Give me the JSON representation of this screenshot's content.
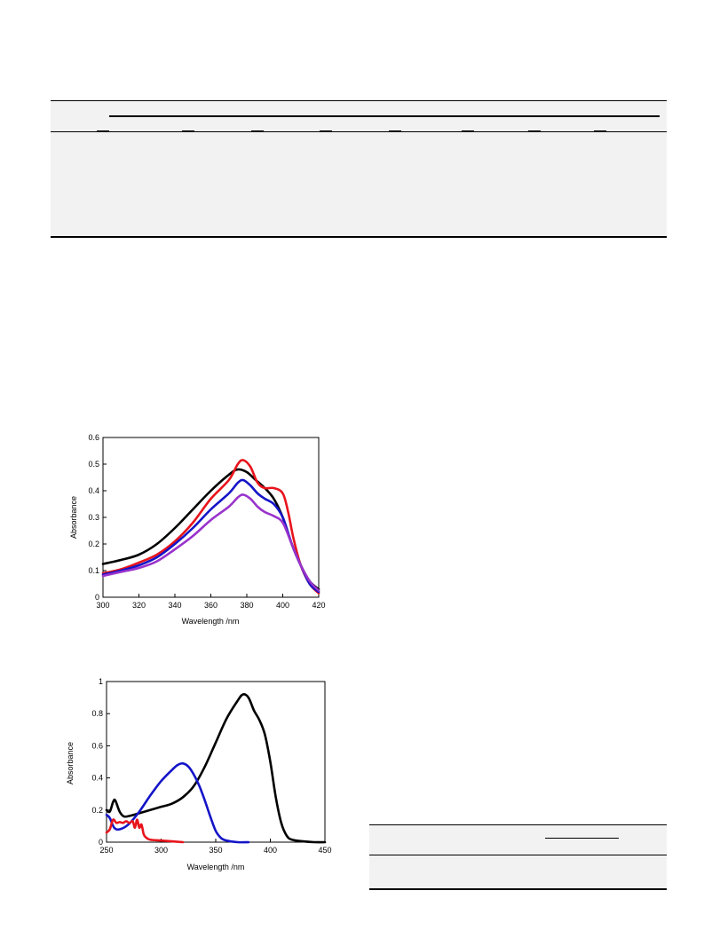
{
  "chart_data": [
    {
      "type": "line",
      "title": "",
      "xlabel": "Wavelength /nm",
      "ylabel": "Absorbance",
      "xlim": [
        300,
        420
      ],
      "ylim": [
        0,
        0.6
      ],
      "xticks": [
        "300",
        "320",
        "340",
        "360",
        "380",
        "400",
        "420"
      ],
      "yticks": [
        "0",
        "0.1",
        "0.2",
        "0.3",
        "0.4",
        "0.5",
        "0.6"
      ],
      "grid": false,
      "legend": "none",
      "series": [
        {
          "color": "#000000",
          "x": [
            300,
            310,
            320,
            330,
            340,
            350,
            360,
            370,
            375,
            380,
            385,
            390,
            395,
            400,
            405,
            410,
            415,
            420
          ],
          "values": [
            0.125,
            0.14,
            0.16,
            0.2,
            0.26,
            0.33,
            0.4,
            0.46,
            0.48,
            0.47,
            0.44,
            0.41,
            0.37,
            0.3,
            0.2,
            0.12,
            0.06,
            0.03
          ]
        },
        {
          "color": "#e8141c",
          "x": [
            300,
            310,
            320,
            330,
            340,
            350,
            360,
            370,
            375,
            378,
            382,
            386,
            390,
            395,
            400,
            403,
            406,
            410,
            415,
            420
          ],
          "values": [
            0.09,
            0.105,
            0.13,
            0.16,
            0.21,
            0.28,
            0.37,
            0.44,
            0.5,
            0.515,
            0.49,
            0.43,
            0.41,
            0.41,
            0.39,
            0.32,
            0.22,
            0.12,
            0.05,
            0.015
          ]
        },
        {
          "color": "#1414c8",
          "x": [
            300,
            310,
            320,
            330,
            340,
            350,
            360,
            370,
            375,
            378,
            382,
            386,
            390,
            395,
            400,
            405,
            410,
            415,
            420
          ],
          "values": [
            0.085,
            0.1,
            0.12,
            0.15,
            0.2,
            0.26,
            0.33,
            0.39,
            0.43,
            0.44,
            0.42,
            0.39,
            0.37,
            0.35,
            0.3,
            0.2,
            0.12,
            0.05,
            0.02
          ]
        },
        {
          "color": "#9933cc",
          "x": [
            300,
            310,
            320,
            330,
            340,
            350,
            360,
            370,
            375,
            378,
            382,
            386,
            390,
            395,
            400,
            405,
            410,
            415,
            420
          ],
          "values": [
            0.08,
            0.095,
            0.11,
            0.135,
            0.18,
            0.23,
            0.29,
            0.34,
            0.375,
            0.385,
            0.37,
            0.34,
            0.32,
            0.305,
            0.28,
            0.2,
            0.12,
            0.06,
            0.025
          ]
        }
      ]
    },
    {
      "type": "line",
      "title": "",
      "xlabel": "Wavelength /nm",
      "ylabel": "Absorbance",
      "xlim": [
        250,
        450
      ],
      "ylim": [
        0,
        1
      ],
      "xticks": [
        "250",
        "300",
        "350",
        "400",
        "450"
      ],
      "yticks": [
        "0",
        "0.2",
        "0.4",
        "0.6",
        "0.8",
        "1"
      ],
      "grid": false,
      "legend": "none",
      "series": [
        {
          "color": "#000000",
          "x": [
            250,
            253,
            256,
            258,
            262,
            266,
            272,
            280,
            290,
            300,
            310,
            320,
            330,
            340,
            350,
            360,
            370,
            375,
            380,
            385,
            390,
            395,
            400,
            405,
            410,
            415,
            420,
            430,
            440,
            450
          ],
          "values": [
            0.2,
            0.19,
            0.25,
            0.26,
            0.19,
            0.16,
            0.165,
            0.18,
            0.2,
            0.22,
            0.24,
            0.28,
            0.35,
            0.47,
            0.62,
            0.77,
            0.88,
            0.92,
            0.9,
            0.82,
            0.76,
            0.67,
            0.5,
            0.28,
            0.12,
            0.04,
            0.015,
            0.005,
            0,
            0
          ]
        },
        {
          "color": "#1414c8",
          "x": [
            250,
            253,
            257,
            262,
            270,
            280,
            290,
            300,
            310,
            315,
            320,
            325,
            330,
            335,
            340,
            345,
            350,
            355,
            360,
            370,
            380
          ],
          "values": [
            0.17,
            0.15,
            0.09,
            0.08,
            0.11,
            0.19,
            0.29,
            0.38,
            0.45,
            0.48,
            0.49,
            0.47,
            0.42,
            0.35,
            0.26,
            0.16,
            0.07,
            0.025,
            0.01,
            0,
            0
          ]
        },
        {
          "color": "#e8141c",
          "x": [
            250,
            253,
            256,
            259,
            262,
            265,
            268,
            271,
            274,
            276,
            278,
            280,
            282,
            284,
            286,
            290,
            300,
            310,
            320
          ],
          "values": [
            0.06,
            0.08,
            0.14,
            0.12,
            0.125,
            0.12,
            0.13,
            0.12,
            0.13,
            0.09,
            0.14,
            0.09,
            0.11,
            0.05,
            0.03,
            0.015,
            0.01,
            0.005,
            0
          ]
        }
      ]
    }
  ]
}
